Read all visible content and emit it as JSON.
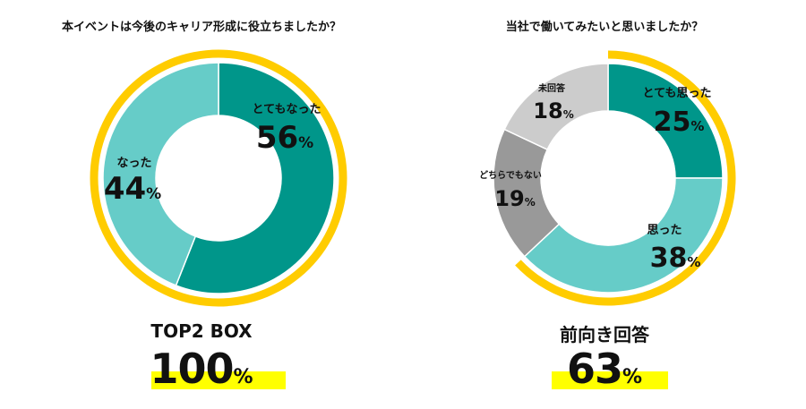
{
  "colors": {
    "ring": "#ffcc00",
    "highlight": "#ffff00",
    "teal_dark": "#00968a",
    "teal_light": "#66ccc8",
    "gray_dark": "#999999",
    "gray_light": "#cccccc"
  },
  "chart_data": [
    {
      "type": "pie",
      "title": "本イベントは今後のキャリア形成に役立ちましたか？",
      "categories": [
        "とてもなった",
        "なった"
      ],
      "values": [
        56,
        44
      ],
      "value_labels": [
        "56",
        "44"
      ],
      "unit": "%",
      "colors": [
        "#00968a",
        "#66ccc8"
      ],
      "highlight_ring_percent": 100,
      "summary_label": "TOP2 BOX",
      "summary_value": "100",
      "summary_unit": "%"
    },
    {
      "type": "pie",
      "title": "当社で働いてみたいと思いましたか？",
      "categories": [
        "とても思った",
        "思った",
        "どちらでもない",
        "未回答"
      ],
      "values": [
        25,
        38,
        19,
        18
      ],
      "value_labels": [
        "25",
        "38",
        "19",
        "18"
      ],
      "unit": "%",
      "colors": [
        "#00968a",
        "#66ccc8",
        "#999999",
        "#cccccc"
      ],
      "highlight_ring_percent": 63,
      "summary_label": "前向き回答",
      "summary_value": "63",
      "summary_unit": "%"
    }
  ]
}
